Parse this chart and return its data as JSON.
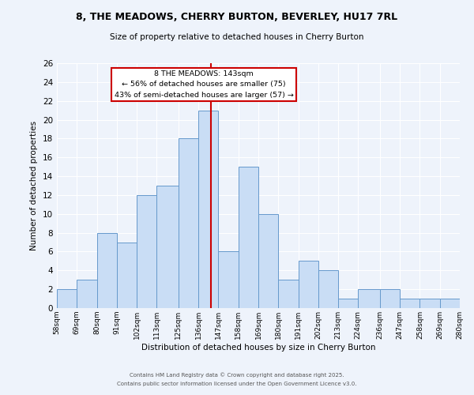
{
  "title": "8, THE MEADOWS, CHERRY BURTON, BEVERLEY, HU17 7RL",
  "subtitle": "Size of property relative to detached houses in Cherry Burton",
  "xlabel": "Distribution of detached houses by size in Cherry Burton",
  "ylabel": "Number of detached properties",
  "bar_color": "#c9ddf5",
  "bar_edge_color": "#6699cc",
  "background_color": "#eef3fb",
  "grid_color": "#ffffff",
  "bins": [
    58,
    69,
    80,
    91,
    102,
    113,
    125,
    136,
    147,
    158,
    169,
    180,
    191,
    202,
    213,
    224,
    236,
    247,
    258,
    269,
    280
  ],
  "counts": [
    2,
    3,
    8,
    7,
    12,
    13,
    18,
    21,
    6,
    15,
    10,
    3,
    5,
    4,
    1,
    2,
    2,
    1,
    1,
    1
  ],
  "tick_labels": [
    "58sqm",
    "69sqm",
    "80sqm",
    "91sqm",
    "102sqm",
    "113sqm",
    "125sqm",
    "136sqm",
    "147sqm",
    "158sqm",
    "169sqm",
    "180sqm",
    "191sqm",
    "202sqm",
    "213sqm",
    "224sqm",
    "236sqm",
    "247sqm",
    "258sqm",
    "269sqm",
    "280sqm"
  ],
  "vline_x": 143,
  "vline_color": "#cc0000",
  "annotation_title": "8 THE MEADOWS: 143sqm",
  "annotation_line1": "← 56% of detached houses are smaller (75)",
  "annotation_line2": "43% of semi-detached houses are larger (57) →",
  "annotation_box_color": "#ffffff",
  "annotation_box_edge": "#cc0000",
  "ylim": [
    0,
    26
  ],
  "yticks": [
    0,
    2,
    4,
    6,
    8,
    10,
    12,
    14,
    16,
    18,
    20,
    22,
    24,
    26
  ],
  "footnote1": "Contains HM Land Registry data © Crown copyright and database right 2025.",
  "footnote2": "Contains public sector information licensed under the Open Government Licence v3.0."
}
